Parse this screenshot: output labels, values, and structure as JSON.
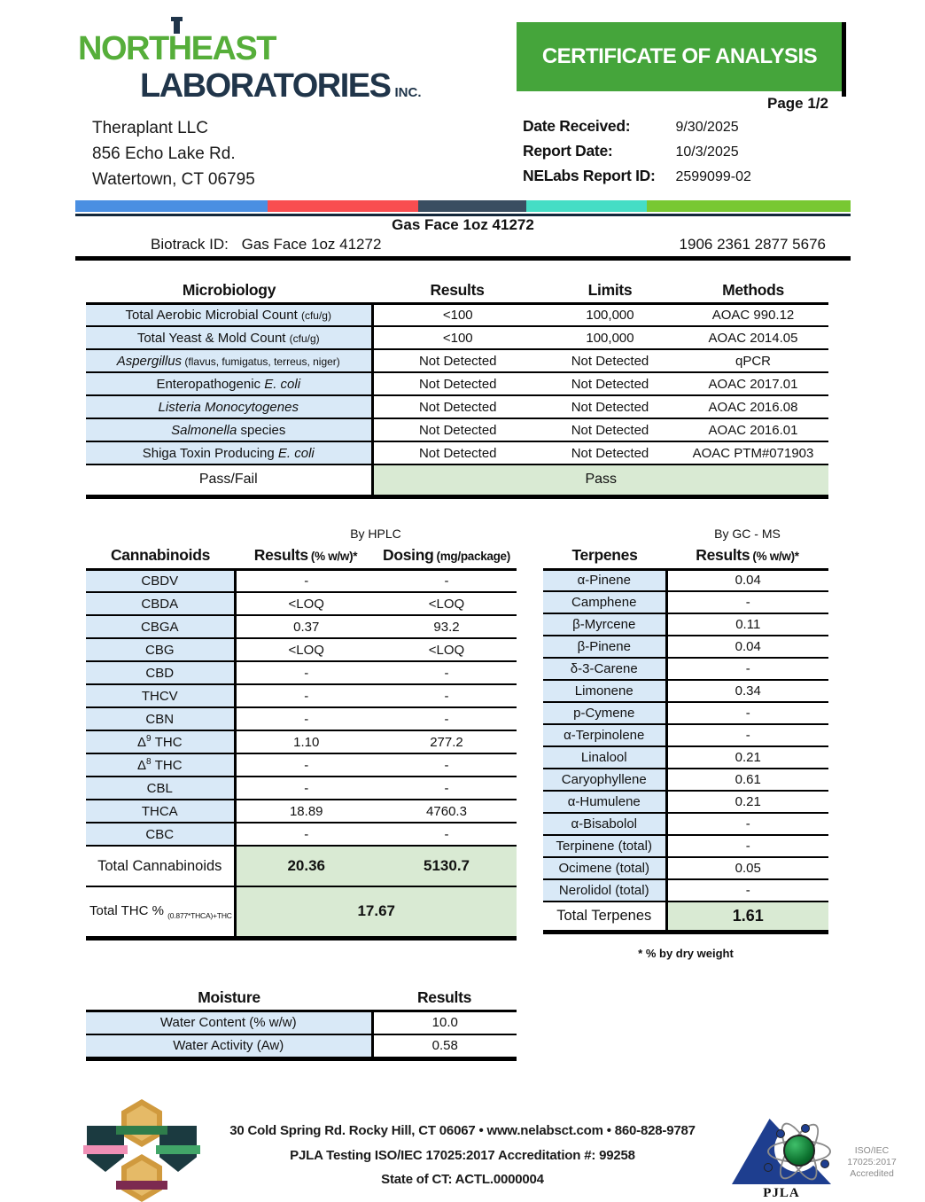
{
  "meta": {
    "page_label": "Page 1/2"
  },
  "colors": {
    "accent_green": "#45a53b",
    "logo_green": "#56ae3a",
    "logo_navy": "#20354a",
    "bar_blue": "#4a8fe2",
    "bar_red": "#f94d50",
    "bar_navy": "#3a4e61",
    "bar_teal": "#45ddc5",
    "bar_green": "#78c832",
    "row_blue": "#d9e9f7",
    "result_green": "#d9ead3"
  },
  "header": {
    "logo": {
      "line1": "NORTHEAST",
      "line2": "LABORATORIES",
      "inc": "INC."
    },
    "client": {
      "name": "Theraplant LLC",
      "address1": "856 Echo Lake Rd.",
      "address2": "Watertown, CT 06795"
    },
    "title": "CERTIFICATE OF ANALYSIS",
    "fields": [
      {
        "label": "Date Received:",
        "value": "9/30/2025"
      },
      {
        "label": "Report Date:",
        "value": "10/3/2025"
      },
      {
        "label": "NELabs Report ID:",
        "value": "2599099-02"
      }
    ]
  },
  "sample": {
    "title": "Gas Face 1oz 41272",
    "biotrack_label": "Biotrack ID:",
    "biotrack_value": "Gas Face 1oz 41272",
    "code": "1906 2361 2877 5676"
  },
  "microbiology": {
    "headers": [
      "Microbiology",
      "Results",
      "Limits",
      "Methods"
    ],
    "rows": [
      {
        "pre": "Total Aerobic Microbial Count ",
        "small": "(cfu/g)",
        "results": "<100",
        "limits": "100,000",
        "method": "AOAC 990.12"
      },
      {
        "pre": "Total Yeast & Mold Count ",
        "small": "(cfu/g)",
        "results": "<100",
        "limits": "100,000",
        "method": "AOAC 2014.05"
      },
      {
        "it": "Aspergillus",
        "small": " (flavus, fumigatus, terreus, niger)",
        "results": "Not Detected",
        "limits": "Not Detected",
        "method": "qPCR"
      },
      {
        "pre": "Enteropathogenic ",
        "it": "E. coli",
        "results": "Not Detected",
        "limits": "Not Detected",
        "method": "AOAC 2017.01"
      },
      {
        "it": "Listeria Monocytogenes",
        "results": "Not Detected",
        "limits": "Not Detected",
        "method": "AOAC 2016.08"
      },
      {
        "it": "Salmonella",
        "post": " species",
        "results": "Not Detected",
        "limits": "Not Detected",
        "method": "AOAC 2016.01"
      },
      {
        "pre": "Shiga Toxin Producing ",
        "it": "E. coli",
        "results": "Not Detected",
        "limits": "Not Detected",
        "method": "AOAC PTM#071903"
      }
    ],
    "pass_label": "Pass/Fail",
    "pass_value": "Pass"
  },
  "cannabinoids": {
    "method_note": "By HPLC",
    "headers": {
      "col1": "Cannabinoids",
      "col2a": "Results",
      "col2b": "(% w/w)*",
      "col3a": "Dosing",
      "col3b": "(mg/package)"
    },
    "rows": [
      {
        "name": "CBDV",
        "result": "-",
        "dosing": "-"
      },
      {
        "name": "CBDA",
        "result": "<LOQ",
        "dosing": "<LOQ"
      },
      {
        "name": "CBGA",
        "result": "0.37",
        "dosing": "93.2"
      },
      {
        "name": "CBG",
        "result": "<LOQ",
        "dosing": "<LOQ"
      },
      {
        "name": "CBD",
        "result": "-",
        "dosing": "-"
      },
      {
        "name": "THCV",
        "result": "-",
        "dosing": "-"
      },
      {
        "name": "CBN",
        "result": "-",
        "dosing": "-"
      },
      {
        "name": "Δ",
        "sup": "9",
        "post": " THC",
        "result": "1.10",
        "dosing": "277.2"
      },
      {
        "name": "Δ",
        "sup": "8",
        "post": " THC",
        "result": "-",
        "dosing": "-"
      },
      {
        "name": "CBL",
        "result": "-",
        "dosing": "-"
      },
      {
        "name": "THCA",
        "result": "18.89",
        "dosing": "4760.3"
      },
      {
        "name": "CBC",
        "result": "-",
        "dosing": "-"
      }
    ],
    "total": {
      "label": "Total Cannabinoids",
      "result": "20.36",
      "dosing": "5130.7"
    },
    "total_thc": {
      "label": "Total THC % ",
      "sub": "(0.877*THCA)+THC",
      "value": "17.67"
    }
  },
  "terpenes": {
    "method_note": "By GC - MS",
    "headers": {
      "col1": "Terpenes",
      "col2a": "Results",
      "col2b": "(% w/w)*"
    },
    "rows": [
      {
        "name": "α-Pinene",
        "value": "0.04"
      },
      {
        "name": "Camphene",
        "value": "-"
      },
      {
        "name": "β-Myrcene",
        "value": "0.11"
      },
      {
        "name": "β-Pinene",
        "value": "0.04"
      },
      {
        "name": "δ-3-Carene",
        "value": "-"
      },
      {
        "name": "Limonene",
        "value": "0.34"
      },
      {
        "name": "p-Cymene",
        "value": "-"
      },
      {
        "name": "α-Terpinolene",
        "value": "-"
      },
      {
        "name": "Linalool",
        "value": "0.21"
      },
      {
        "name": "Caryophyllene",
        "value": "0.61"
      },
      {
        "name": "α-Humulene",
        "value": "0.21"
      },
      {
        "name": "α-Bisabolol",
        "value": "-"
      },
      {
        "name": "Terpinene (total)",
        "value": "-"
      },
      {
        "name": "Ocimene (total)",
        "value": "0.05"
      },
      {
        "name": "Nerolidol (total)",
        "value": "-"
      }
    ],
    "total": {
      "label": "Total Terpenes",
      "value": "1.61"
    },
    "footnote": "* % by dry weight"
  },
  "moisture": {
    "headers": [
      "Moisture",
      "Results"
    ],
    "rows": [
      {
        "name": "Water Content (% w/w)",
        "value": "10.0"
      },
      {
        "name": "Water Activity (Aw)",
        "value": "0.58"
      }
    ]
  },
  "footer": {
    "line1": "30 Cold Spring Rd. Rocky Hill, CT 06067   •   www.nelabsct.com   •   860-828-9787",
    "line2": "PJLA Testing ISO/IEC 17025:2017 Accreditation #: 99258",
    "line3": "State of CT: ACTL.0000004",
    "pjla": {
      "name": "PJLA",
      "accreditation_line1": "ISO/IEC 17025:2017",
      "accreditation_line2": "Accredited"
    }
  }
}
